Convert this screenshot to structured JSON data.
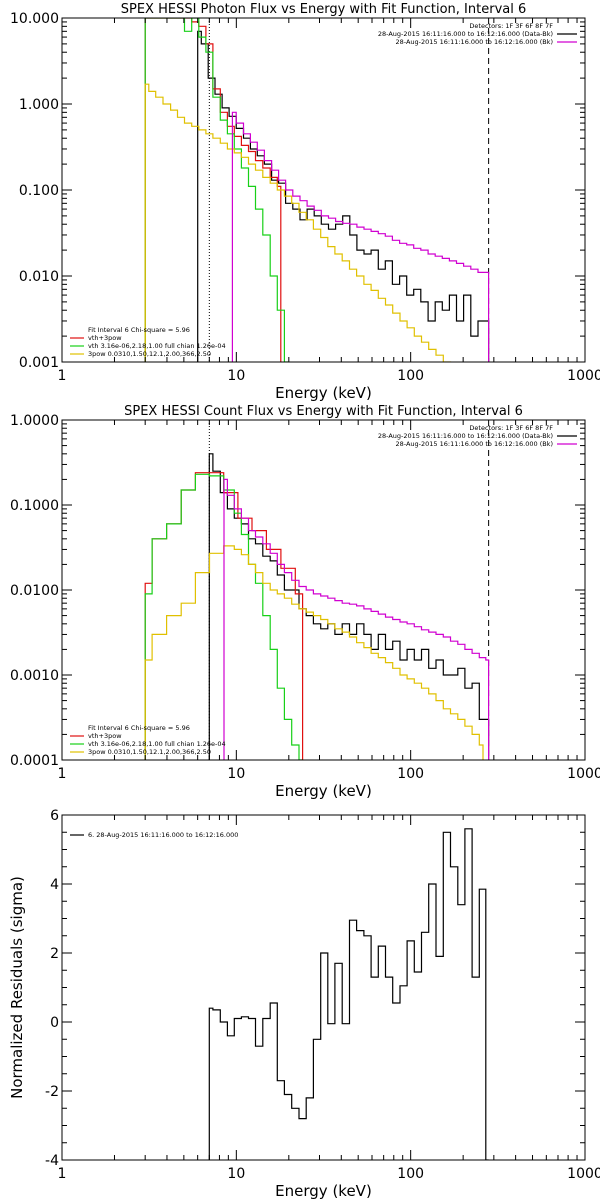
{
  "chart_data": [
    {
      "type": "line",
      "title": "SPEX HESSI Photon Flux vs Energy with Fit Function, Interval 6",
      "xlabel": "Energy (keV)",
      "ylabel": "",
      "xscale": "log",
      "yscale": "log",
      "xlim": [
        1,
        1000
      ],
      "ylim": [
        0.001,
        10
      ],
      "xticks": [
        "1",
        "10",
        "100",
        "1000"
      ],
      "yticks": [
        "0.001",
        "0.010",
        "0.100",
        "1.000",
        "10.000"
      ],
      "vlines": {
        "dotted": 7,
        "dashed": 280
      },
      "info_top_right": [
        "Detectors: 1F 3F 6F 8F 7F",
        "28-Aug-2015 16:11:16.000 to 16:12:16.000 (Data-Bk)",
        "28-Aug-2015 16:11:16.000 to 16:12:16.000 (Bk)"
      ],
      "legend_bottom_left": [
        {
          "text": "Fit Interval 6   Chi-square = 5.96",
          "color": ""
        },
        {
          "text": "vth+3pow",
          "color": "#e01010"
        },
        {
          "text": "vth 3.16e-06,2.18,1.00  full chian 1.26e-04",
          "color": "#18d018"
        },
        {
          "text": "3pow 0.0310,1.50,12.1,2.00,366,2.50",
          "color": "#e0c000"
        }
      ],
      "series": [
        {
          "name": "Data-Bk",
          "color": "#000000",
          "x": [
            6,
            6.6,
            7.2,
            7.9,
            8.7,
            9.5,
            10.5,
            11.5,
            12.6,
            13.8,
            15.2,
            16.7,
            18.3,
            20.1,
            22.1,
            24.3,
            26.7,
            29.3,
            32.2,
            35.4,
            38.9,
            42.7,
            46.9,
            51.5,
            56.6,
            62.2,
            68.3,
            75,
            82.4,
            90.5,
            99.4,
            109,
            120,
            132,
            145,
            159,
            175,
            192,
            211,
            232,
            255,
            280
          ],
          "y": [
            7,
            5,
            2.0,
            1.3,
            0.9,
            0.72,
            0.52,
            0.4,
            0.3,
            0.25,
            0.2,
            0.13,
            0.12,
            0.07,
            0.06,
            0.045,
            0.06,
            0.05,
            0.04,
            0.035,
            0.04,
            0.05,
            0.03,
            0.02,
            0.018,
            0.02,
            0.012,
            0.015,
            0.008,
            0.01,
            0.006,
            0.007,
            0.005,
            0.003,
            0.005,
            0.004,
            0.006,
            0.003,
            0.006,
            0.002,
            0.003,
            0.003
          ]
        },
        {
          "name": "vth+3pow",
          "color": "#e01010",
          "x": [
            3,
            3.3,
            3.6,
            4.0,
            4.4,
            4.8,
            5.3,
            5.8,
            6.4,
            7.0,
            7.7,
            8.5,
            9.3,
            10.2,
            11.2,
            12.3,
            13.5,
            14.9,
            16.4,
            18.0
          ],
          "y": [
            10,
            10,
            10,
            10,
            10,
            10,
            10,
            9,
            8,
            5,
            1.5,
            0.8,
            0.55,
            0.42,
            0.33,
            0.28,
            0.22,
            0.18,
            0.14,
            0.11
          ]
        },
        {
          "name": "vth",
          "color": "#18d018",
          "x": [
            3,
            3.3,
            3.6,
            4.0,
            4.4,
            4.8,
            5.3,
            5.8,
            6.4,
            7.0,
            7.7,
            8.5,
            9.3,
            10.2,
            11.2,
            12.3,
            13.5,
            14.9,
            16.4,
            18.0,
            19.8
          ],
          "y": [
            10,
            10,
            10,
            10,
            10,
            10,
            7,
            10,
            6,
            4,
            1.2,
            0.65,
            0.45,
            0.3,
            0.18,
            0.11,
            0.06,
            0.03,
            0.01,
            0.004,
            0.001
          ]
        },
        {
          "name": "3pow",
          "color": "#e0c000",
          "x": [
            3,
            3.3,
            3.6,
            4.0,
            4.4,
            4.8,
            5.3,
            5.8,
            6.4,
            7.0,
            7.7,
            8.5,
            9.3,
            10.2,
            11.2,
            12.3,
            13.5,
            14.9,
            16.4,
            18,
            19.8,
            21.8,
            24,
            26.4,
            29,
            32,
            35,
            38.6,
            42.5,
            46.7,
            51.4,
            56.5,
            62.2,
            68.4,
            75.2,
            82.8,
            91,
            100,
            110,
            121,
            133,
            147,
            161,
            178,
            195
          ],
          "y": [
            1.7,
            1.4,
            1.2,
            1.0,
            0.85,
            0.7,
            0.6,
            0.55,
            0.5,
            0.45,
            0.4,
            0.35,
            0.3,
            0.27,
            0.24,
            0.2,
            0.17,
            0.14,
            0.12,
            0.1,
            0.085,
            0.07,
            0.055,
            0.045,
            0.035,
            0.028,
            0.022,
            0.018,
            0.015,
            0.012,
            0.01,
            0.008,
            0.0068,
            0.0055,
            0.0046,
            0.0037,
            0.003,
            0.0025,
            0.002,
            0.0017,
            0.0014,
            0.0012,
            0.001,
            0.0009,
            0.0008
          ]
        },
        {
          "name": "Bk",
          "color": "#d000d0",
          "x": [
            9.5,
            10.5,
            11.5,
            12.6,
            13.8,
            15.2,
            16.7,
            18.3,
            20.1,
            22.1,
            24.3,
            26.7,
            29.3,
            32.2,
            35.4,
            38.9,
            42.7,
            46.9,
            51.5,
            56.6,
            62.2,
            68.3,
            75,
            82.4,
            90.5,
            99.4,
            109,
            120,
            132,
            145,
            159,
            175,
            192,
            211,
            232,
            255,
            280
          ],
          "y": [
            0.8,
            0.6,
            0.45,
            0.36,
            0.29,
            0.22,
            0.17,
            0.13,
            0.1,
            0.085,
            0.075,
            0.065,
            0.058,
            0.05,
            0.047,
            0.043,
            0.041,
            0.04,
            0.037,
            0.035,
            0.033,
            0.031,
            0.029,
            0.026,
            0.024,
            0.023,
            0.021,
            0.02,
            0.018,
            0.017,
            0.016,
            0.015,
            0.014,
            0.013,
            0.012,
            0.011,
            0.011
          ]
        }
      ]
    },
    {
      "type": "line",
      "title": "SPEX HESSI Count Flux vs Energy with Fit Function, Interval 6",
      "xlabel": "Energy (keV)",
      "ylabel": "",
      "xscale": "log",
      "yscale": "log",
      "xlim": [
        1,
        1000
      ],
      "ylim": [
        0.0001,
        1
      ],
      "xticks": [
        "1",
        "10",
        "100",
        "1000"
      ],
      "yticks": [
        "0.0001",
        "0.0010",
        "0.0100",
        "0.1000",
        "1.0000"
      ],
      "vlines": {
        "dotted": 7,
        "dashed": 280
      },
      "info_top_right": [
        "Detectors: 1F 3F 6F 8F 7F",
        "28-Aug-2015 16:11:16.000 to 16:12:16.000 (Data-Bk)",
        "28-Aug-2015 16:11:16.000 to 16:12:16.000 (Bk)"
      ],
      "legend_bottom_left": [
        {
          "text": "Fit Interval 6   Chi-square = 5.96",
          "color": ""
        },
        {
          "text": "vth+3pow",
          "color": "#e01010"
        },
        {
          "text": "vth 3.16e-06,2.18,1.00  full chian 1.26e-04",
          "color": "#18d018"
        },
        {
          "text": "3pow 0.0310,1.50,12.1,2.00,366,2.50",
          "color": "#e0c000"
        }
      ],
      "series": [
        {
          "name": "Data-Bk",
          "color": "#000000",
          "x": [
            7,
            7.7,
            8.5,
            9.3,
            10.2,
            11.2,
            12.3,
            13.5,
            14.9,
            16.4,
            18,
            19.8,
            21.8,
            24,
            26.4,
            29,
            32,
            35,
            38.6,
            42.5,
            46.7,
            51.4,
            56.5,
            62.2,
            68.4,
            75.2,
            82.8,
            91,
            100,
            110,
            121,
            133,
            147,
            161,
            178,
            195,
            215,
            236,
            260,
            280
          ],
          "y": [
            0.4,
            0.25,
            0.14,
            0.09,
            0.07,
            0.06,
            0.04,
            0.035,
            0.025,
            0.022,
            0.015,
            0.01,
            0.01,
            0.006,
            0.005,
            0.004,
            0.0035,
            0.004,
            0.003,
            0.004,
            0.003,
            0.004,
            0.003,
            0.002,
            0.003,
            0.002,
            0.0025,
            0.0015,
            0.002,
            0.0015,
            0.002,
            0.0012,
            0.0015,
            0.001,
            0.001,
            0.0012,
            0.0007,
            0.0008,
            0.0003,
            0.0003
          ]
        },
        {
          "name": "vth+3pow",
          "color": "#e01010",
          "x": [
            3,
            3.6,
            4.4,
            5.3,
            6.4,
            7.7,
            9.3,
            11.2,
            13.5,
            16.4,
            19.8,
            24
          ],
          "y": [
            0.012,
            0.04,
            0.06,
            0.15,
            0.24,
            0.24,
            0.14,
            0.07,
            0.05,
            0.03,
            0.018,
            0.009
          ]
        },
        {
          "name": "vth",
          "color": "#18d018",
          "x": [
            3,
            3.6,
            4.4,
            5.3,
            6.4,
            7.7,
            9.3,
            10.2,
            11.2,
            12.3,
            13.5,
            14.9,
            16.4,
            18,
            19.8,
            21.8,
            24
          ],
          "y": [
            0.009,
            0.04,
            0.06,
            0.15,
            0.23,
            0.22,
            0.15,
            0.08,
            0.045,
            0.02,
            0.012,
            0.005,
            0.002,
            0.0007,
            0.0003,
            0.00015,
            0.0001
          ]
        },
        {
          "name": "3pow",
          "color": "#e0c000",
          "x": [
            3,
            3.6,
            4.4,
            5.3,
            6.4,
            7.7,
            9.3,
            10.2,
            11.2,
            12.3,
            13.5,
            14.9,
            16.4,
            18,
            19.8,
            21.8,
            24,
            26.4,
            29,
            32,
            35,
            38.6,
            42.5,
            46.7,
            51.4,
            56.5,
            62.2,
            68.4,
            75.2,
            82.8,
            91,
            100,
            110,
            121,
            133,
            147,
            161,
            178,
            195,
            215,
            236,
            260
          ],
          "y": [
            0.0015,
            0.003,
            0.005,
            0.007,
            0.016,
            0.027,
            0.033,
            0.03,
            0.026,
            0.02,
            0.016,
            0.012,
            0.01,
            0.009,
            0.008,
            0.0068,
            0.006,
            0.0055,
            0.005,
            0.0045,
            0.004,
            0.0035,
            0.0032,
            0.0028,
            0.0024,
            0.0021,
            0.0018,
            0.0016,
            0.0014,
            0.0012,
            0.001,
            0.0009,
            0.0008,
            0.0007,
            0.0006,
            0.0005,
            0.0004,
            0.00035,
            0.0003,
            0.00025,
            0.0002,
            0.00015
          ]
        },
        {
          "name": "Bk",
          "color": "#d000d0",
          "x": [
            8.5,
            9.3,
            10.2,
            11.2,
            12.3,
            13.5,
            14.9,
            16.4,
            18,
            19.8,
            21.8,
            24,
            26.4,
            29,
            32,
            35,
            38.6,
            42.5,
            46.7,
            51.4,
            56.5,
            62.2,
            68.4,
            75.2,
            82.8,
            91,
            100,
            110,
            121,
            133,
            147,
            161,
            178,
            195,
            215,
            236,
            260,
            280
          ],
          "y": [
            0.2,
            0.13,
            0.09,
            0.07,
            0.05,
            0.042,
            0.035,
            0.027,
            0.02,
            0.016,
            0.013,
            0.011,
            0.01,
            0.009,
            0.0085,
            0.008,
            0.0075,
            0.007,
            0.0068,
            0.0065,
            0.006,
            0.0056,
            0.0052,
            0.0048,
            0.0045,
            0.0042,
            0.004,
            0.0037,
            0.0034,
            0.0032,
            0.003,
            0.0028,
            0.0025,
            0.0023,
            0.002,
            0.0018,
            0.0016,
            0.0015
          ]
        }
      ]
    },
    {
      "type": "line",
      "title": "",
      "xlabel": "Energy (keV)",
      "ylabel": "Normalized Residuals (sigma)",
      "xscale": "log",
      "yscale": "linear",
      "xlim": [
        1,
        1000
      ],
      "ylim": [
        -4,
        6
      ],
      "xticks": [
        "1",
        "10",
        "100",
        "1000"
      ],
      "yticks": [
        "-4",
        "-2",
        "0",
        "2",
        "4",
        "6"
      ],
      "legend_top_left": "6. 28-Aug-2015 16:11:16.000 to 16:12:16.000",
      "series": [
        {
          "name": "residuals",
          "color": "#000000",
          "x": [
            7,
            7.7,
            8.5,
            9.3,
            10.2,
            11.2,
            12.3,
            13.5,
            14.9,
            16.4,
            18,
            19.8,
            21.8,
            24,
            26.4,
            29,
            32,
            35,
            38.6,
            42.5,
            46.7,
            51.4,
            56.5,
            62.2,
            68.4,
            75.2,
            82.8,
            91,
            100,
            110,
            121,
            133,
            147,
            161,
            178,
            195,
            215,
            236,
            260,
            280
          ],
          "y": [
            0.4,
            0.35,
            0,
            -0.4,
            0.1,
            0.15,
            0.1,
            -0.7,
            0.1,
            0.55,
            -1.7,
            -2.1,
            -2.5,
            -2.8,
            -2.2,
            -0.5,
            2.0,
            -0.05,
            1.7,
            -0.05,
            2.95,
            2.65,
            2.5,
            1.3,
            2.2,
            1.3,
            0.55,
            1.05,
            2.35,
            1.45,
            2.6,
            4.0,
            1.9,
            5.5,
            4.5,
            3.4,
            5.6,
            1.3,
            3.85,
            -4
          ]
        }
      ]
    }
  ]
}
